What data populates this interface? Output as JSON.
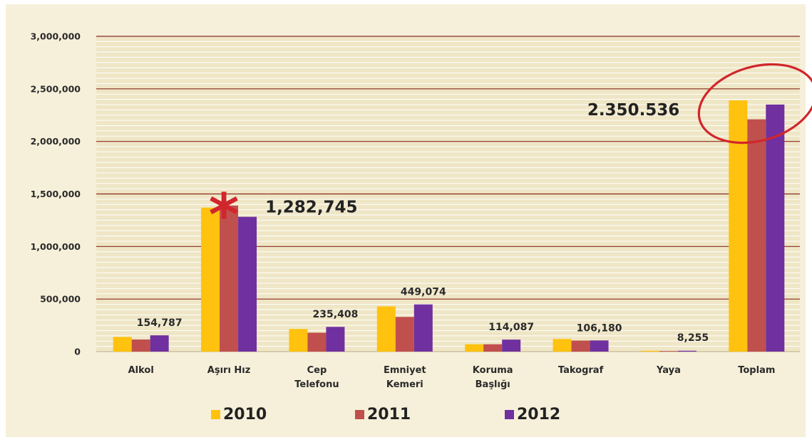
{
  "chart_data": {
    "type": "bar",
    "categories": [
      [
        "Alkol"
      ],
      [
        "Aşırı Hız"
      ],
      [
        "Cep",
        "Telefonu"
      ],
      [
        "Emniyet",
        "Kemeri"
      ],
      [
        "Koruma",
        "Başlığı"
      ],
      [
        "Takograf"
      ],
      [
        "Yaya"
      ],
      [
        "Toplam"
      ]
    ],
    "series": [
      {
        "name": "2010",
        "color": "#ffc20e",
        "values": [
          140000,
          1370000,
          215000,
          430000,
          70000,
          120000,
          8000,
          2390000
        ]
      },
      {
        "name": "2011",
        "color": "#c0504d",
        "values": [
          115000,
          1390000,
          180000,
          330000,
          70000,
          105000,
          6000,
          2210000
        ]
      },
      {
        "name": "2012",
        "color": "#7030a0",
        "values": [
          154787,
          1282745,
          235408,
          449074,
          114087,
          106180,
          8255,
          2350536
        ]
      }
    ],
    "yticks": [
      "0",
      "500,000",
      "1,000,000",
      "1,500,000",
      "2,000,000",
      "2,500,000",
      "3,000,000"
    ],
    "ylim": [
      0,
      3000000
    ],
    "data_labels": [
      {
        "category_index": 0,
        "text": "154,787",
        "style": "small"
      },
      {
        "category_index": 1,
        "text": "1,282,745",
        "style": "large"
      },
      {
        "category_index": 2,
        "text": "235,408",
        "style": "small"
      },
      {
        "category_index": 3,
        "text": "449,074",
        "style": "small"
      },
      {
        "category_index": 4,
        "text": "114,087",
        "style": "small"
      },
      {
        "category_index": 5,
        "text": "106,180",
        "style": "small"
      },
      {
        "category_index": 6,
        "text": "8,255",
        "style": "small"
      },
      {
        "category_index": 7,
        "text": "2.350.536",
        "style": "large"
      }
    ],
    "annotations": {
      "star": "*",
      "star_category_index": 1,
      "circle_category_index": 7,
      "circle_color": "#d1262c"
    },
    "legend_position": "bottom",
    "grid": true,
    "colors": {
      "plot_background": "#efe6c6",
      "major_grid": "#8a2a22",
      "minor_grid": "#ffffff",
      "axis_text": "#2a2a2a"
    }
  }
}
